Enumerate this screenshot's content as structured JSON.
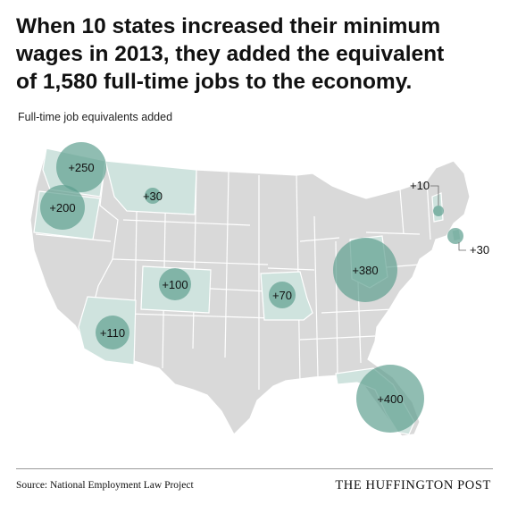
{
  "title_lines": [
    "When 10 states increased their minimum",
    "wages in 2013, they added the equivalent",
    "of 1,580 full-time jobs to the economy."
  ],
  "subtitle": "Full-time job equivalents added",
  "states": [
    {
      "state": "Washington",
      "label": "+250",
      "value": 250
    },
    {
      "state": "Oregon",
      "label": "+200",
      "value": 200
    },
    {
      "state": "Montana",
      "label": "+30",
      "value": 30
    },
    {
      "state": "Colorado",
      "label": "+100",
      "value": 100
    },
    {
      "state": "Arizona",
      "label": "+110",
      "value": 110
    },
    {
      "state": "Missouri",
      "label": "+70",
      "value": 70
    },
    {
      "state": "Ohio",
      "label": "+380",
      "value": 380
    },
    {
      "state": "Florida",
      "label": "+400",
      "value": 400
    },
    {
      "state": "Vermont",
      "label": "+10",
      "value": 10
    },
    {
      "state": "Rhode Island",
      "label": "+30",
      "value": 30
    }
  ],
  "colors": {
    "land": "#d9d9d9",
    "highlight_state": "#cfe3de",
    "bubble": "#5c9e8e",
    "borders": "#ffffff"
  },
  "source": "Source: National Employment Law Project",
  "brand": "THE HUFFINGTON POST"
}
